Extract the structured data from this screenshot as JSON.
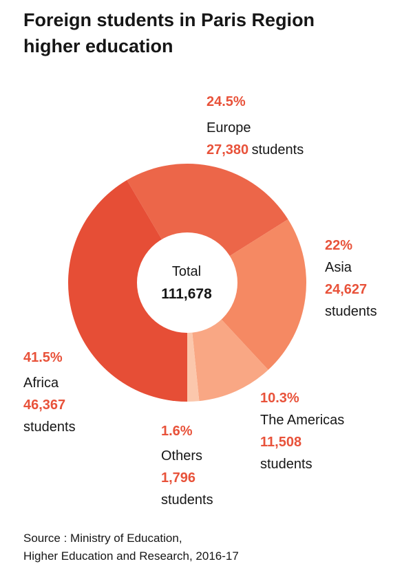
{
  "title": {
    "line1": "Foreign students in Paris Region",
    "line2": "higher education"
  },
  "center": {
    "label": "Total",
    "value": "111,678"
  },
  "source": {
    "line1": "Source : Ministry of Education,",
    "line2": "Higher Education and Research, 2016-17"
  },
  "chart_data": {
    "type": "pie",
    "title": "Foreign students in Paris Region higher education",
    "total": 111678,
    "slices": [
      {
        "name": "Europe",
        "percent": 24.5,
        "value": 27380,
        "percent_label": "24.5%",
        "value_label": "27,380",
        "unit": "students",
        "color": "#ec6649"
      },
      {
        "name": "Asia",
        "percent": 22,
        "value": 24627,
        "percent_label": "22%",
        "value_label": "24,627",
        "unit": "students",
        "color": "#f58963"
      },
      {
        "name": "The Americas",
        "percent": 10.3,
        "value": 11508,
        "percent_label": "10.3%",
        "value_label": "11,508",
        "unit": "students",
        "color": "#f9a784"
      },
      {
        "name": "Others",
        "percent": 1.6,
        "value": 1796,
        "percent_label": "1.6%",
        "value_label": "1,796",
        "unit": "students",
        "color": "#fbc7ac"
      },
      {
        "name": "Africa",
        "percent": 41.5,
        "value": 46367,
        "percent_label": "41.5%",
        "value_label": "46,367",
        "unit": "students",
        "color": "#e64e36"
      }
    ]
  }
}
